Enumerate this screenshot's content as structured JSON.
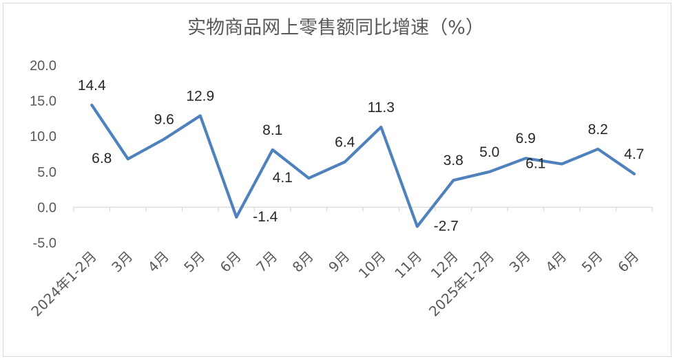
{
  "chart_data": {
    "type": "line",
    "title": "实物商品网上零售额同比增速（%）",
    "xlabel": "",
    "ylabel": "",
    "ylim": [
      -5,
      20
    ],
    "yticks": [
      "20.0",
      "15.0",
      "10.0",
      "5.0",
      "0.0",
      "-5.0"
    ],
    "categories": [
      "2024年1-2月",
      "3月",
      "4月",
      "5月",
      "6月",
      "7月",
      "8月",
      "9月",
      "10月",
      "11月",
      "12月",
      "2025年1-2月",
      "3月",
      "4月",
      "5月",
      "6月"
    ],
    "values": [
      14.4,
      6.8,
      9.6,
      12.9,
      -1.4,
      8.1,
      4.1,
      6.4,
      11.3,
      -2.7,
      3.8,
      5.0,
      6.9,
      6.1,
      8.2,
      4.7
    ],
    "value_labels": [
      "14.4",
      "6.8",
      "9.6",
      "12.9",
      "-1.4",
      "8.1",
      "4.1",
      "6.4",
      "11.3",
      "-2.7",
      "3.8",
      "5.0",
      "6.9",
      "6.1",
      "8.2",
      "4.7"
    ],
    "line_color": "#4f81bd",
    "grid": false,
    "legend": "none"
  }
}
